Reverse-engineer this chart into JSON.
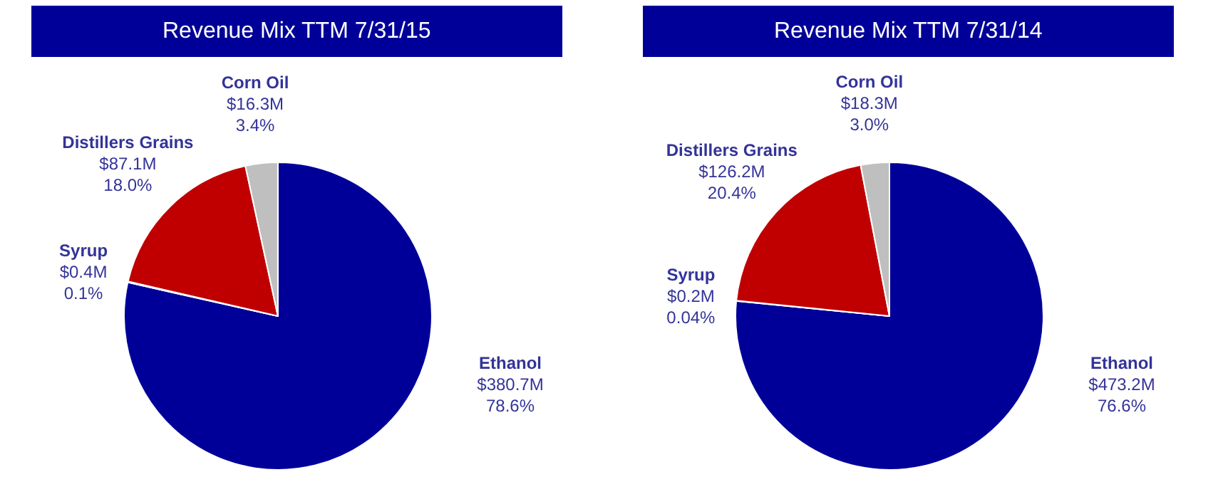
{
  "chart_data": [
    {
      "type": "pie",
      "title": "Revenue Mix TTM 7/31/15",
      "categories": [
        "Ethanol",
        "Syrup",
        "Distillers Grains",
        "Corn Oil"
      ],
      "values": [
        78.6,
        0.1,
        18.0,
        3.4
      ],
      "colors": [
        "#000099",
        "#4f81bd",
        "#c00000",
        "#bfbfbf"
      ],
      "value_labels": [
        "$380.7M\n78.6%",
        "$0.4M\n0.1%",
        "$87.1M\n18.0%",
        "$16.3M\n3.4%"
      ],
      "legend": false
    },
    {
      "type": "pie",
      "title": "Revenue Mix TTM 7/31/14",
      "categories": [
        "Ethanol",
        "Syrup",
        "Distillers Grains",
        "Corn Oil"
      ],
      "values": [
        76.6,
        0.04,
        20.4,
        3.0
      ],
      "colors": [
        "#000099",
        "#4f81bd",
        "#c00000",
        "#bfbfbf"
      ],
      "value_labels": [
        "$473.2M\n76.6%",
        "$0.2M\n0.04%",
        "$126.2M\n20.4%",
        "$18.3M\n3.0%"
      ],
      "legend": false
    }
  ]
}
